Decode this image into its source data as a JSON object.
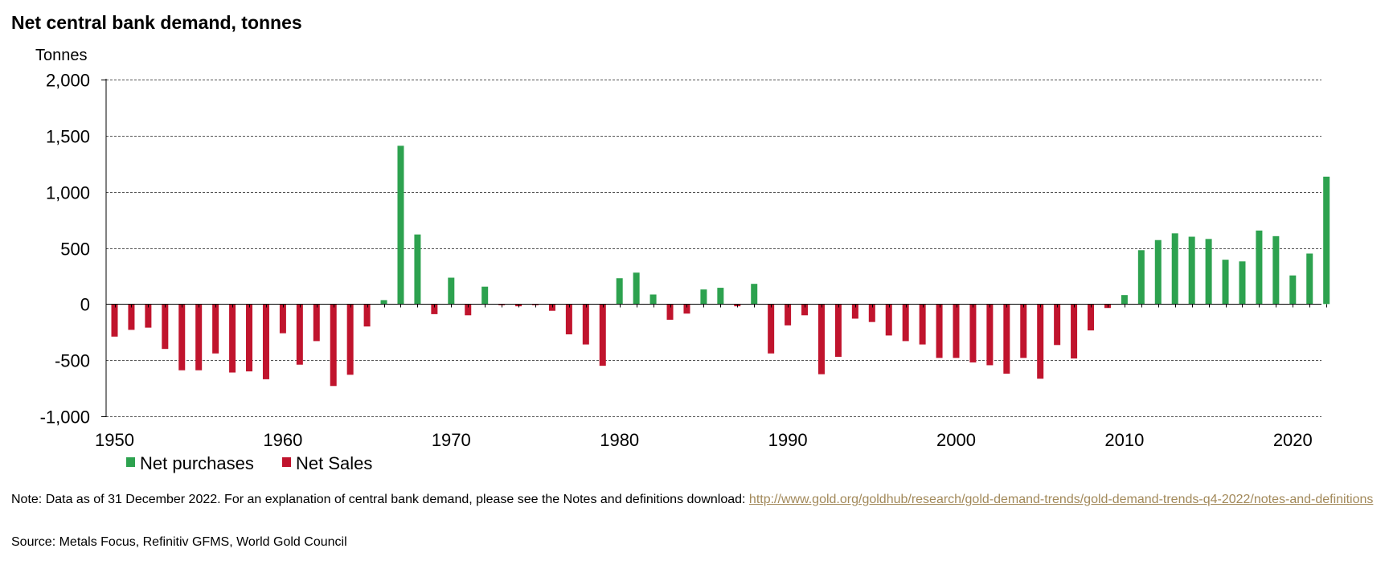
{
  "title": "Net central bank demand, tonnes",
  "note": {
    "text": "Note: Data as of 31 December 2022. For an explanation of central bank demand, please see the Notes and definitions download: ",
    "link_text": "http://www.gold.org/goldhub/research/gold-demand-trends/gold-demand-trends-q4-2022/notes-and-definitions"
  },
  "source": "Source: Metals Focus, Refinitiv GFMS, World Gold Council",
  "colors": {
    "purchases": "#2da24f",
    "sales": "#c0142d"
  },
  "chart_data": {
    "type": "bar",
    "ylabel": "Tonnes",
    "ylim": [
      -1000,
      2000
    ],
    "y_ticks": [
      2000,
      1500,
      1000,
      500,
      0,
      -500,
      -1000
    ],
    "y_tick_labels": [
      "2,000",
      "1,500",
      "1,000",
      "500",
      "0",
      "-500",
      "-1,000"
    ],
    "x_ticks": [
      1950,
      1960,
      1970,
      1980,
      1990,
      2000,
      2010,
      2020
    ],
    "x_tick_labels": [
      "1950",
      "1960",
      "1970",
      "1980",
      "1990",
      "2000",
      "2010",
      "2020"
    ],
    "grid": true,
    "legend_position": "bottom-left",
    "legend": [
      "Net purchases",
      "Net Sales"
    ],
    "x": [
      1950,
      1951,
      1952,
      1953,
      1954,
      1955,
      1956,
      1957,
      1958,
      1959,
      1960,
      1961,
      1962,
      1963,
      1964,
      1965,
      1966,
      1967,
      1968,
      1969,
      1970,
      1971,
      1972,
      1973,
      1974,
      1975,
      1976,
      1977,
      1978,
      1979,
      1980,
      1981,
      1982,
      1983,
      1984,
      1985,
      1986,
      1987,
      1988,
      1989,
      1990,
      1991,
      1992,
      1993,
      1994,
      1995,
      1996,
      1997,
      1998,
      1999,
      2000,
      2001,
      2002,
      2003,
      2004,
      2005,
      2006,
      2007,
      2008,
      2009,
      2010,
      2011,
      2012,
      2013,
      2014,
      2015,
      2016,
      2017,
      2018,
      2019,
      2020,
      2021,
      2022
    ],
    "values": [
      -290,
      -230,
      -210,
      -400,
      -590,
      -590,
      -440,
      -610,
      -600,
      -670,
      -260,
      -540,
      -330,
      -730,
      -630,
      -200,
      35,
      1410,
      620,
      -90,
      235,
      -100,
      155,
      -10,
      -20,
      -10,
      -60,
      -270,
      -360,
      -550,
      230,
      280,
      85,
      -140,
      -85,
      130,
      145,
      -20,
      180,
      -440,
      -190,
      -100,
      -625,
      -470,
      -130,
      -160,
      -280,
      -330,
      -360,
      -480,
      -480,
      -520,
      -545,
      -620,
      -480,
      -665,
      -365,
      -485,
      -235,
      -35,
      80,
      480,
      570,
      630,
      600,
      580,
      395,
      380,
      655,
      605,
      255,
      450,
      1135
    ]
  }
}
